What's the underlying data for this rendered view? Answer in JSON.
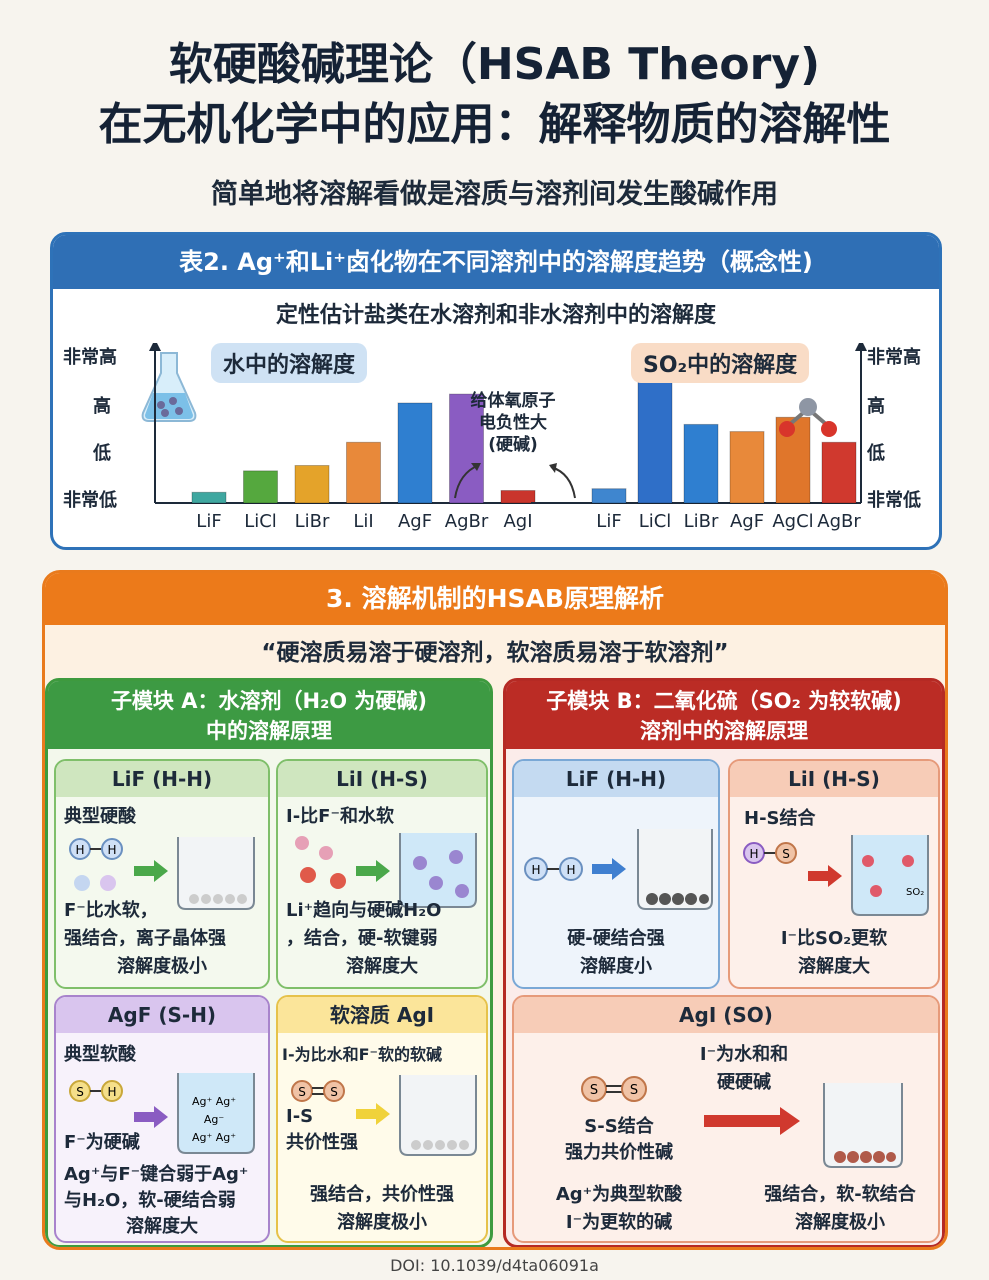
{
  "header": {
    "title_line1": "软硬酸碱理论（HSAB Theory)",
    "title_line2": "在无机化学中的应用：解释物质的溶解性",
    "subtitle": "简单地将溶解看做是溶质与溶剂间发生酸碱作用"
  },
  "table2": {
    "title": "表2. Ag⁺和Li⁺卤化物在不同溶剂中的溶解度趋势（概念性)",
    "subtitle": "定性估计盐类在水溶剂和非水溶剂中的溶解度",
    "note": [
      "给体氧原子",
      "电负性大",
      "(硬碱)"
    ]
  },
  "chart_data": [
    {
      "type": "bar",
      "title": "水中的溶解度",
      "categories": [
        "LiF",
        "LiCl",
        "LiBr",
        "LiI",
        "AgF",
        "AgBr",
        "AgI"
      ],
      "values": [
        0.3,
        0.9,
        1.05,
        1.7,
        2.8,
        3.05,
        0.35
      ],
      "colors": [
        "#3fa7a0",
        "#55a83e",
        "#e4a32a",
        "#e8893a",
        "#2f7fd0",
        "#8a5cc2",
        "#c9352c"
      ],
      "y_tick_labels": [
        "非常低",
        "低",
        "高",
        "非常高"
      ],
      "ylim": [
        0,
        3.5
      ],
      "grid": false
    },
    {
      "type": "bar",
      "title": "SO₂中的溶解度",
      "categories": [
        "LiF",
        "LiCl",
        "LiBr",
        "AgF",
        "AgCl",
        "AgBr"
      ],
      "values": [
        0.4,
        3.4,
        2.2,
        2.0,
        2.4,
        1.7
      ],
      "colors": [
        "#3f86cf",
        "#2f6fc8",
        "#2f7fd0",
        "#e8893a",
        "#e0762b",
        "#d0392e"
      ],
      "y_tick_labels": [
        "非常低",
        "低",
        "高",
        "非常高"
      ],
      "ylim": [
        0,
        3.5
      ],
      "grid": false
    }
  ],
  "section3": {
    "title": "3. 溶解机制的HSAB原理解析",
    "quote": "“硬溶质易溶于硬溶剂，软溶质易溶于软溶剂”",
    "moduleA": {
      "title1": "子模块 A：水溶剂（H₂O 为硬碱)",
      "title2": "中的溶解原理",
      "cards": {
        "lif": {
          "head": "LiF (H-H)",
          "line1": "典型硬酸",
          "line2": "F⁻比水软，",
          "line3": "强结合，离子晶体强",
          "line4": "溶解度极小"
        },
        "lii": {
          "head": "LiI (H-S)",
          "line1": "I-比F⁻和水软",
          "line2": "Li⁺趋向与硬碱H₂O",
          "line3": "，结合，硬-软键弱",
          "line4": "溶解度大"
        },
        "agf": {
          "head": "AgF (S-H)",
          "line1": "典型软酸",
          "line2": "F⁻为硬碱",
          "line3": "Ag⁺与F⁻键合弱于Ag⁺",
          "line4": "与H₂O，软-硬结合弱",
          "line5": "溶解度大"
        },
        "agi": {
          "head": "软溶质 AgI",
          "line1": "I-为比水和F⁻软的软碱",
          "line2": "I-S",
          "line3": "共价性强",
          "line4": "强结合，共价性强",
          "line5": "溶解度极小"
        }
      }
    },
    "moduleB": {
      "title1": "子模块 B：二氧化硫（SO₂ 为较软碱)",
      "title2": "溶剂中的溶解原理",
      "cards": {
        "lif": {
          "head": "LiF (H-H)",
          "line1": "硬-硬结合强",
          "line2": "溶解度小"
        },
        "lii": {
          "head": "LiI (H-S)",
          "line1": "H-S结合",
          "line2": "I⁻比SO₂更软",
          "line3": "溶解度大"
        },
        "agi": {
          "head": "AgI (SO)",
          "line1": "I⁻为水和和",
          "line2": "硬硬碱",
          "line3": "S-S结合",
          "line4": "强力共价性碱",
          "line5": "Ag⁺为典型软酸",
          "line6": "I⁻为更软的碱",
          "line7": "强结合，软-软结合",
          "line8": "溶解度极小"
        }
      }
    }
  },
  "doi": "DOI:  10.1039/d4ta06091a"
}
